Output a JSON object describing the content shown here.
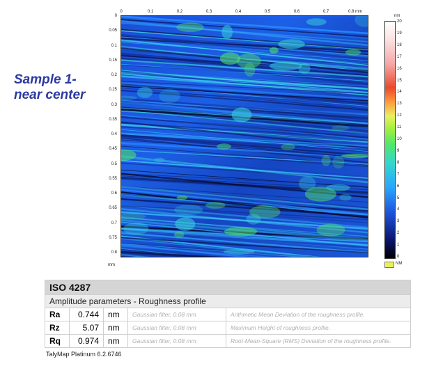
{
  "sample_label": [
    "Sample 1-",
    "near center"
  ],
  "x_ticks": [
    "0",
    "0.1",
    "0.2",
    "0.3",
    "0.4",
    "0.5",
    "0.6",
    "0.7",
    "0.8 mm"
  ],
  "y_ticks": [
    "0",
    "0.05",
    "0.1",
    "0.15",
    "0.2",
    "0.25",
    "0.3",
    "0.35",
    "0.4",
    "0.45",
    "0.5",
    "0.55",
    "0.6",
    "0.65",
    "0.7",
    "0.75",
    "0.8"
  ],
  "y_unit": "mm",
  "colorbar": {
    "unit": "nm",
    "ticks": [
      "20",
      "19",
      "18",
      "17",
      "16",
      "15",
      "14",
      "13",
      "12",
      "11",
      "10",
      "9",
      "8",
      "7",
      "6",
      "5",
      "4",
      "3",
      "2",
      "1",
      "0"
    ],
    "nm_label": "NM"
  },
  "iso": {
    "title": "ISO 4287",
    "subtitle": "Amplitude parameters - Roughness profile",
    "rows": [
      {
        "name": "Ra",
        "value": "0.744",
        "unit": "nm",
        "filter": "Gaussian filter, 0.08 mm",
        "desc": "Arithmetic Mean Deviation of the roughness profile."
      },
      {
        "name": "Rz",
        "value": "5.07",
        "unit": "nm",
        "filter": "Gaussian filter, 0.08 mm",
        "desc": "Maximum Height of roughness profile."
      },
      {
        "name": "Rq",
        "value": "0.974",
        "unit": "nm",
        "filter": "Gaussian filter, 0.08 mm",
        "desc": "Root-Mean-Square (RMS) Deviation of the roughness profile."
      }
    ]
  },
  "footer": "TalyMap Platinum 6.2.6746"
}
